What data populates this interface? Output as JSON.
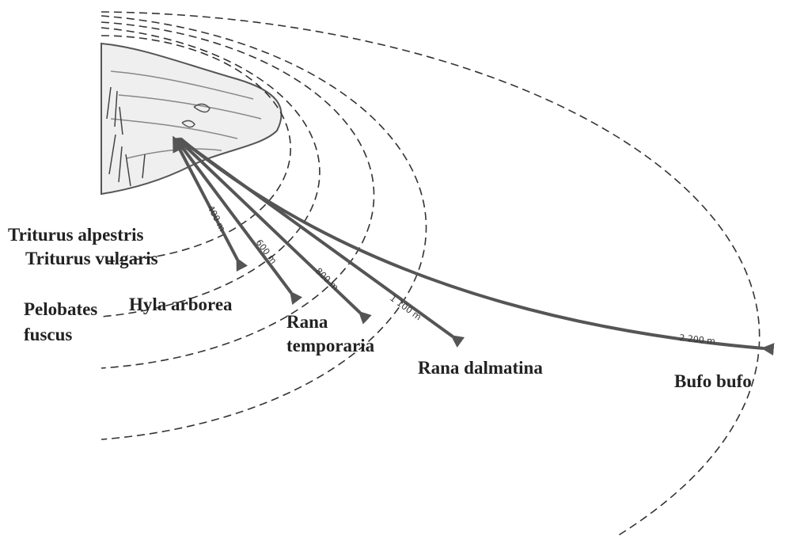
{
  "arrows": [
    {
      "distance": "400 m",
      "species": [
        [
          "Triturus alpestris"
        ],
        [
          "Triturus vulgaris"
        ]
      ]
    },
    {
      "distance": "600 m",
      "species": [
        [
          "Pelobates",
          "fuscus"
        ],
        [
          "Hyla arborea"
        ]
      ]
    },
    {
      "distance": "800 m",
      "species": [
        [
          "Rana",
          "temporaria"
        ]
      ]
    },
    {
      "distance": "1 100 m",
      "species": [
        [
          "Rana dalmatina"
        ]
      ]
    },
    {
      "distance": "2 200 m",
      "species": [
        [
          "Bufo bufo"
        ]
      ]
    }
  ]
}
